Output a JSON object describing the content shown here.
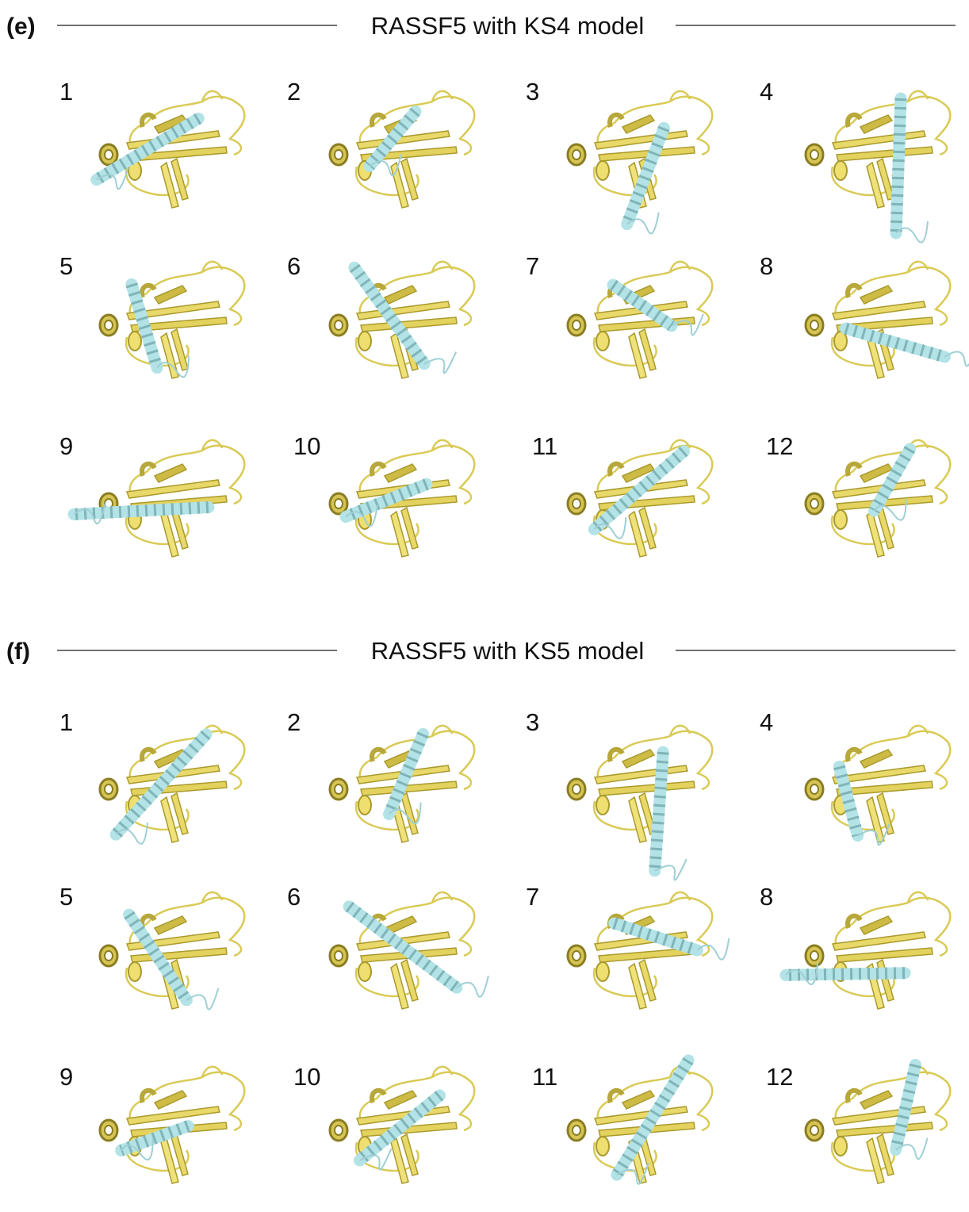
{
  "panels": [
    {
      "label": "(e)",
      "title": "RASSF5 with KS4 model",
      "models": [
        "1",
        "2",
        "3",
        "4",
        "5",
        "6",
        "7",
        "8",
        "9",
        "10",
        "11",
        "12"
      ]
    },
    {
      "label": "(f)",
      "title": "RASSF5 with KS5 model",
      "models": [
        "1",
        "2",
        "3",
        "4",
        "5",
        "6",
        "7",
        "8",
        "9",
        "10",
        "11",
        "12"
      ]
    }
  ]
}
